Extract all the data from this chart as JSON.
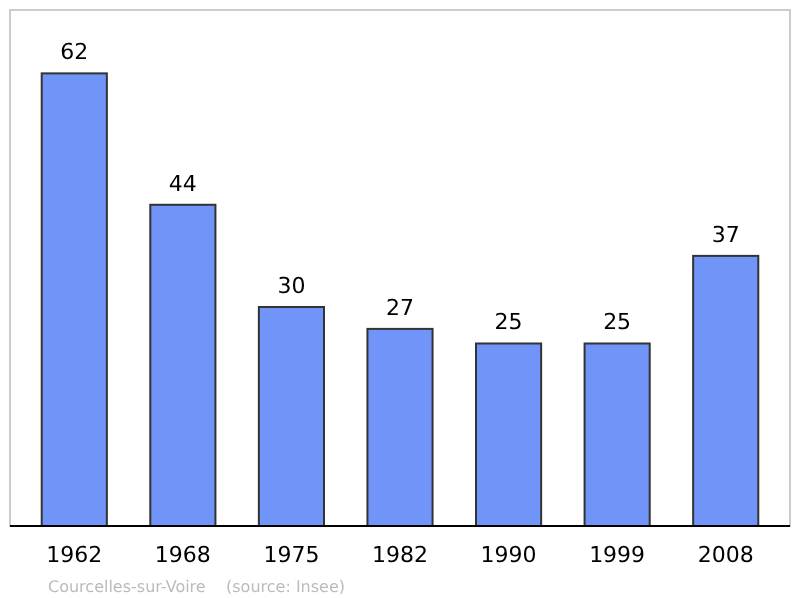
{
  "chart_data": {
    "type": "bar",
    "categories": [
      "1962",
      "1968",
      "1975",
      "1982",
      "1990",
      "1999",
      "2008"
    ],
    "values": [
      62,
      44,
      30,
      27,
      25,
      25,
      37
    ],
    "color": "#7094f7",
    "data_labels": true,
    "annotations": [
      "Courcelles-sur-Voire    (source: Insee)"
    ]
  }
}
